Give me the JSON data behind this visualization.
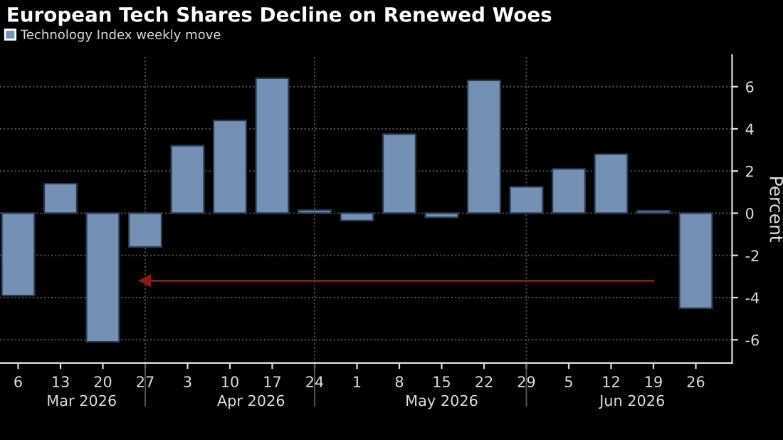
{
  "chart_data": {
    "type": "bar",
    "title": "European Tech Shares Decline on Renewed Woes",
    "ylabel": "Percent",
    "x": [
      "2026-03-06",
      "2026-03-13",
      "2026-03-20",
      "2026-03-27",
      "2026-04-03",
      "2026-04-10",
      "2026-04-17",
      "2026-04-24",
      "2026-05-01",
      "2026-05-08",
      "2026-05-15",
      "2026-05-22",
      "2026-05-29",
      "2026-06-05",
      "2026-06-12",
      "2026-06-19",
      "2026-06-26"
    ],
    "series": [
      {
        "name": "Technology Index weekly move",
        "color": "#7590b5",
        "values": [
          -3.9,
          1.4,
          -6.1,
          -1.6,
          3.2,
          4.4,
          6.4,
          0.15,
          -0.35,
          3.75,
          -0.2,
          6.3,
          1.25,
          2.1,
          2.8,
          0.12,
          -4.5
        ]
      },
      {
        "type": "line",
        "color": "#8b1a1a",
        "x": [
          "2026-06-19",
          "2026-03-27"
        ],
        "values": [
          -3.2,
          -3.2
        ]
      }
    ],
    "xlim": [
      "2026-03-03",
      "2026-07-02"
    ],
    "xticks": [
      {
        "value": "2026-03-06",
        "label": "6"
      },
      {
        "value": "2026-03-13",
        "label": "13"
      },
      {
        "value": "2026-03-20",
        "label": "20"
      },
      {
        "value": "2026-03-27",
        "label": "27"
      },
      {
        "value": "2026-04-03",
        "label": "3"
      },
      {
        "value": "2026-04-10",
        "label": "10"
      },
      {
        "value": "2026-04-17",
        "label": "17"
      },
      {
        "value": "2026-04-24",
        "label": "24"
      },
      {
        "value": "2026-05-01",
        "label": "1"
      },
      {
        "value": "2026-05-08",
        "label": "8"
      },
      {
        "value": "2026-05-15",
        "label": "15"
      },
      {
        "value": "2026-05-22",
        "label": "22"
      },
      {
        "value": "2026-05-29",
        "label": "29"
      },
      {
        "value": "2026-06-05",
        "label": "5"
      },
      {
        "value": "2026-06-12",
        "label": "12"
      },
      {
        "value": "2026-06-19",
        "label": "19"
      },
      {
        "value": "2026-06-26",
        "label": "26"
      }
    ],
    "ylim": [
      -7.1,
      7.5
    ],
    "yticks": [
      -6,
      -4,
      -2,
      0,
      2,
      4,
      6
    ],
    "ref_lines": [
      {
        "axis": "x",
        "value": "2026-03-27",
        "color": "#555555",
        "line_style": "dotted"
      },
      {
        "axis": "x",
        "value": "2026-04-24",
        "color": "#555555",
        "line_style": "dotted"
      },
      {
        "axis": "x",
        "value": "2026-05-29",
        "color": "#555555",
        "line_style": "dotted"
      }
    ],
    "annotations": [
      "Mar 2026",
      "Apr 2026",
      "May 2026",
      "Jun 2026"
    ],
    "grid": "y",
    "legend": "top left"
  }
}
